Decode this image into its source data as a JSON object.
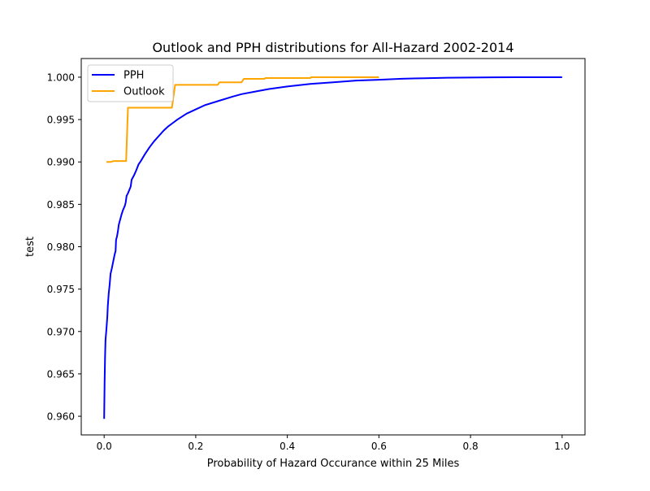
{
  "chart_data": {
    "type": "line",
    "title": "Outlook and PPH distributions for All-Hazard 2002-2014",
    "xlabel": "Probability of Hazard Occurance within 25 Miles",
    "ylabel": "test",
    "xlim": [
      -0.05,
      1.05
    ],
    "ylim": [
      0.9578,
      1.0022
    ],
    "xticks": [
      {
        "value": 0.0,
        "label": "0.0"
      },
      {
        "value": 0.2,
        "label": "0.2"
      },
      {
        "value": 0.4,
        "label": "0.4"
      },
      {
        "value": 0.6,
        "label": "0.6"
      },
      {
        "value": 0.8,
        "label": "0.8"
      },
      {
        "value": 1.0,
        "label": "1.0"
      }
    ],
    "yticks": [
      {
        "value": 0.96,
        "label": "0.960"
      },
      {
        "value": 0.965,
        "label": "0.965"
      },
      {
        "value": 0.97,
        "label": "0.970"
      },
      {
        "value": 0.975,
        "label": "0.975"
      },
      {
        "value": 0.98,
        "label": "0.980"
      },
      {
        "value": 0.985,
        "label": "0.985"
      },
      {
        "value": 0.99,
        "label": "0.990"
      },
      {
        "value": 0.995,
        "label": "0.995"
      },
      {
        "value": 1.0,
        "label": "1.000"
      }
    ],
    "grid": false,
    "legend_position": "top-left",
    "series": [
      {
        "name": "PPH",
        "color": "#0000ff",
        "points": [
          [
            0.0,
            0.9597
          ],
          [
            0.001,
            0.964
          ],
          [
            0.002,
            0.967
          ],
          [
            0.003,
            0.969
          ],
          [
            0.005,
            0.9703
          ],
          [
            0.007,
            0.9718
          ],
          [
            0.008,
            0.973
          ],
          [
            0.01,
            0.9745
          ],
          [
            0.012,
            0.9755
          ],
          [
            0.014,
            0.9768
          ],
          [
            0.017,
            0.9775
          ],
          [
            0.02,
            0.9783
          ],
          [
            0.023,
            0.9791
          ],
          [
            0.025,
            0.9795
          ],
          [
            0.026,
            0.9808
          ],
          [
            0.028,
            0.9812
          ],
          [
            0.03,
            0.9818
          ],
          [
            0.032,
            0.9826
          ],
          [
            0.035,
            0.9832
          ],
          [
            0.038,
            0.9838
          ],
          [
            0.041,
            0.9843
          ],
          [
            0.045,
            0.9848
          ],
          [
            0.047,
            0.9852
          ],
          [
            0.049,
            0.986
          ],
          [
            0.052,
            0.9863
          ],
          [
            0.055,
            0.9867
          ],
          [
            0.058,
            0.9871
          ],
          [
            0.06,
            0.9879
          ],
          [
            0.065,
            0.9884
          ],
          [
            0.07,
            0.989
          ],
          [
            0.075,
            0.9897
          ],
          [
            0.08,
            0.9901
          ],
          [
            0.09,
            0.991
          ],
          [
            0.1,
            0.9918
          ],
          [
            0.11,
            0.9925
          ],
          [
            0.12,
            0.9931
          ],
          [
            0.13,
            0.9937
          ],
          [
            0.14,
            0.9942
          ],
          [
            0.15,
            0.9946
          ],
          [
            0.16,
            0.995
          ],
          [
            0.18,
            0.9957
          ],
          [
            0.2,
            0.9962
          ],
          [
            0.22,
            0.9967
          ],
          [
            0.25,
            0.9972
          ],
          [
            0.28,
            0.9977
          ],
          [
            0.3,
            0.998
          ],
          [
            0.33,
            0.9983
          ],
          [
            0.36,
            0.9986
          ],
          [
            0.4,
            0.9989
          ],
          [
            0.45,
            0.9992
          ],
          [
            0.5,
            0.9994
          ],
          [
            0.55,
            0.9996
          ],
          [
            0.6,
            0.9997
          ],
          [
            0.65,
            0.99982
          ],
          [
            0.7,
            0.99988
          ],
          [
            0.75,
            0.99993
          ],
          [
            0.8,
            0.99996
          ],
          [
            0.85,
            0.99998
          ],
          [
            0.9,
            0.99999
          ],
          [
            1.0,
            1.0
          ]
        ]
      },
      {
        "name": "Outlook",
        "color": "#ffa500",
        "points": [
          [
            0.005,
            0.99
          ],
          [
            0.015,
            0.99
          ],
          [
            0.02,
            0.9901
          ],
          [
            0.048,
            0.9901
          ],
          [
            0.052,
            0.9964
          ],
          [
            0.148,
            0.9964
          ],
          [
            0.155,
            0.9991
          ],
          [
            0.248,
            0.9991
          ],
          [
            0.252,
            0.9994
          ],
          [
            0.3,
            0.9994
          ],
          [
            0.305,
            0.9998
          ],
          [
            0.35,
            0.9998
          ],
          [
            0.352,
            0.9999
          ],
          [
            0.45,
            0.9999
          ],
          [
            0.452,
            1.0
          ],
          [
            0.6,
            1.0
          ]
        ]
      }
    ]
  }
}
